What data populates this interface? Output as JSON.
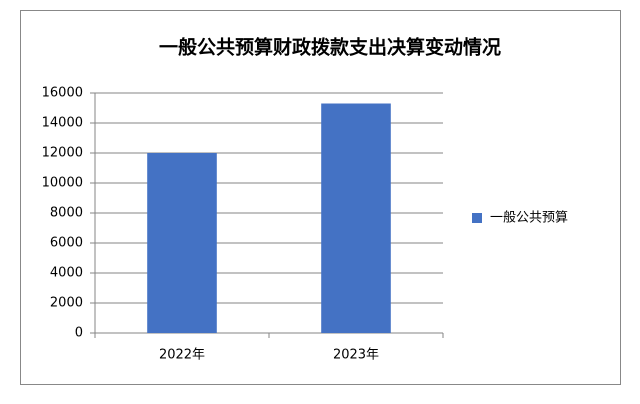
{
  "chart_data": {
    "type": "bar",
    "title": "一般公共预算财政拨款支出决算变动情况",
    "categories": [
      "2022年",
      "2023年"
    ],
    "series": [
      {
        "name": "一般公共预算",
        "color": "#4472c4",
        "values": [
          12000,
          15300
        ]
      }
    ],
    "ylim": [
      0,
      16000
    ],
    "yticks": [
      0,
      2000,
      4000,
      6000,
      8000,
      10000,
      12000,
      14000,
      16000
    ],
    "grid": true,
    "legend": "right"
  }
}
